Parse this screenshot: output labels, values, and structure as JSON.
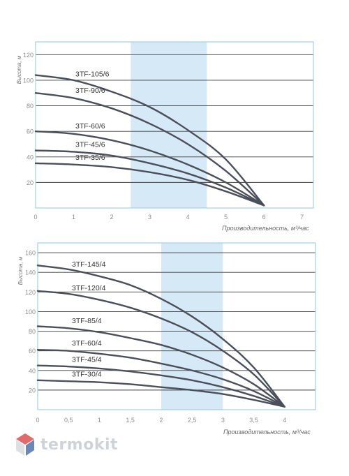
{
  "colors": {
    "highlight": "#d6e9f7",
    "curve": "#4a4f59",
    "frame": "#9fd0e8",
    "grid": "#3c3c3c",
    "tick_text": "#8c8c8c",
    "logo_red": "#e26a6a",
    "logo_blue": "#6b87b8"
  },
  "logo": {
    "text": "termokit"
  },
  "chart_data": [
    {
      "type": "line",
      "xlabel": "Производительность, м³/час",
      "ylabel": "Высота, м",
      "xlim": [
        0,
        7.3
      ],
      "ylim": [
        0,
        130
      ],
      "xticks": [
        "0",
        "1",
        "2",
        "3",
        "4",
        "5",
        "6",
        "7"
      ],
      "xtick_values": [
        0,
        1,
        2,
        3,
        4,
        5,
        6,
        7
      ],
      "yticks": [
        "20",
        "40",
        "60",
        "80",
        "100",
        "120"
      ],
      "ytick_values": [
        20,
        40,
        60,
        80,
        100,
        120
      ],
      "highlight_range": [
        2.5,
        4.5
      ],
      "grid": "horizontal",
      "series": [
        {
          "name": "3TF-105/6",
          "x": [
            0,
            1,
            2,
            3,
            4,
            5,
            6
          ],
          "values": [
            104,
            100,
            91,
            79,
            61,
            38,
            2
          ]
        },
        {
          "name": "3TF-90/6",
          "x": [
            0,
            1,
            2,
            3,
            4,
            5,
            6
          ],
          "values": [
            90,
            86,
            78,
            66,
            50,
            29,
            2
          ]
        },
        {
          "name": "3TF-60/6",
          "x": [
            0,
            1,
            2,
            3,
            4,
            5,
            6
          ],
          "values": [
            60,
            58,
            53,
            45,
            34,
            20,
            2
          ]
        },
        {
          "name": "3TF-45/6",
          "x": [
            0,
            1,
            2,
            3,
            4,
            5,
            6
          ],
          "values": [
            45,
            44,
            41,
            35,
            27,
            16,
            2
          ]
        },
        {
          "name": "3TF-35/6",
          "x": [
            0,
            1,
            2,
            3,
            4,
            5,
            6
          ],
          "values": [
            35,
            34,
            32,
            28,
            22,
            13,
            2
          ]
        }
      ]
    },
    {
      "type": "line",
      "xlabel": "Производительность, м³/час",
      "ylabel": "Высота, м",
      "xlim": [
        0,
        4.5
      ],
      "ylim": [
        0,
        170
      ],
      "xticks": [
        "0",
        "0,5",
        "1",
        "1,5",
        "2",
        "2,5",
        "3",
        "3,5",
        "4"
      ],
      "xtick_values": [
        0,
        0.5,
        1,
        1.5,
        2,
        2.5,
        3,
        3.5,
        4
      ],
      "yticks": [
        "20",
        "40",
        "60",
        "80",
        "100",
        "120",
        "140",
        "160"
      ],
      "ytick_values": [
        20,
        40,
        60,
        80,
        100,
        120,
        140,
        160
      ],
      "highlight_range": [
        2,
        3
      ],
      "grid": "horizontal",
      "series": [
        {
          "name": "3TF-145/4",
          "x": [
            0,
            0.5,
            1,
            1.5,
            2,
            2.5,
            3,
            3.5,
            4
          ],
          "values": [
            147,
            143,
            136,
            127,
            113,
            95,
            72,
            43,
            3
          ]
        },
        {
          "name": "3TF-120/4",
          "x": [
            0,
            0.5,
            1,
            1.5,
            2,
            2.5,
            3,
            3.5,
            4
          ],
          "values": [
            121,
            118,
            112,
            104,
            93,
            79,
            60,
            36,
            3
          ]
        },
        {
          "name": "3TF-85/4",
          "x": [
            0,
            0.5,
            1,
            1.5,
            2,
            2.5,
            3,
            3.5,
            4
          ],
          "values": [
            85,
            83,
            79,
            73,
            66,
            56,
            43,
            26,
            3
          ]
        },
        {
          "name": "3TF-60/4",
          "x": [
            0,
            0.5,
            1,
            1.5,
            2,
            2.5,
            3,
            3.5,
            4
          ],
          "values": [
            61,
            60,
            57,
            53,
            47,
            40,
            31,
            19,
            3
          ]
        },
        {
          "name": "3TF-45/4",
          "x": [
            0,
            0.5,
            1,
            1.5,
            2,
            2.5,
            3,
            3.5,
            4
          ],
          "values": [
            45,
            44,
            42,
            39,
            35,
            30,
            23,
            14,
            3
          ]
        },
        {
          "name": "3TF-30/4",
          "x": [
            0,
            0.5,
            1,
            1.5,
            2,
            2.5,
            3,
            3.5,
            4
          ],
          "values": [
            30,
            29,
            28,
            26,
            23,
            20,
            16,
            10,
            3
          ]
        }
      ]
    }
  ]
}
